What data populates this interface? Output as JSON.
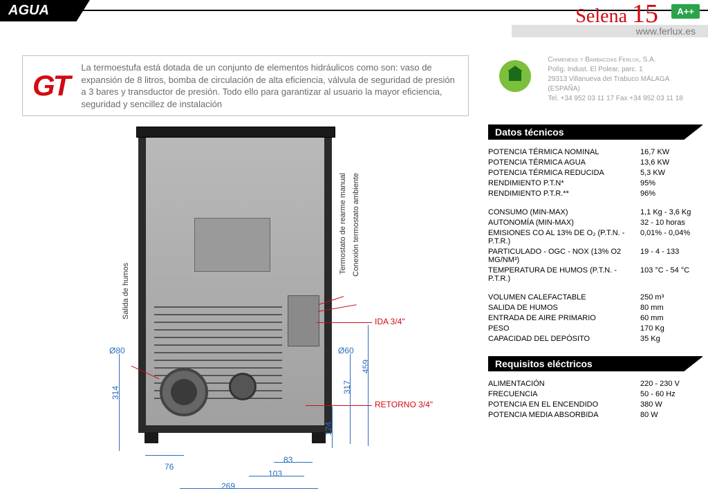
{
  "header": {
    "tag": "AGUA",
    "product": "Selena",
    "product_num": "15",
    "energy": "A++",
    "url": "www.ferlux.es"
  },
  "gt": {
    "logo": "GT",
    "desc": "La termoestufa está dotada de un conjunto de elementos hidráulicos como son: vaso de expansión de 8 litros, bomba de circulación de alta eficiencia, válvula de seguridad de presión a 3 bares y transductor de presión. Todo ello para garantizar al usuario la mayor eficiencia, seguridad y sencillez de instalación"
  },
  "company": {
    "name": "Chimeneas y Barbacoas Ferlux, S.A.",
    "addr1": "Políg. Indust. El Polear, parc. 1",
    "addr2": "29313 Villanueva del Trabuco MÁLAGA (ESPAÑA)",
    "tel": "Tel. +34 952 03 11 17   Fax +34 952 03 11 18"
  },
  "tech": {
    "title": "Datos técnicos",
    "rows": [
      {
        "l": "Potencia térmica nominal",
        "v": "16,7 KW"
      },
      {
        "l": "Potencia térmica agua",
        "v": "13,6 KW"
      },
      {
        "l": "Potencia térmica reducida",
        "v": "5,3 KW"
      },
      {
        "l": "Rendimiento P.T.N*",
        "v": "95%"
      },
      {
        "l": "Rendimiento P.T.R.**",
        "v": "96%"
      },
      {
        "gap": true
      },
      {
        "l": "Consumo (min-max)",
        "v": "1,1 Kg - 3,6 Kg"
      },
      {
        "l": "Autonomía (min-max)",
        "v": "32 - 10 horas"
      },
      {
        "l": "Emisiones CO al 13% de O₂ (P.T.N. - P.T.R.)",
        "v": "0,01% - 0,04%"
      },
      {
        "l": "Particulado - OGC - NOX (13% O2 mg/Nm³)",
        "v": "19 - 4 - 133"
      },
      {
        "l": "Temperatura de humos (P.T.N. - P.T.R.)",
        "v": "103 °C - 54 °C"
      },
      {
        "gap": true
      },
      {
        "l": "Volumen calefactable",
        "v": "250 m³"
      },
      {
        "l": "Salida de humos",
        "v": "80 mm"
      },
      {
        "l": "Entrada de aire primario",
        "v": "60 mm"
      },
      {
        "l": "Peso",
        "v": "170 Kg"
      },
      {
        "l": "Capacidad del depósito",
        "v": "35 Kg"
      }
    ]
  },
  "elec": {
    "title": "Requisitos eléctricos",
    "rows": [
      {
        "l": "Alimentación",
        "v": "220 - 230 V"
      },
      {
        "l": "Frecuencia",
        "v": "50 - 60 Hz"
      },
      {
        "l": "Potencia en el encendido",
        "v": "380 W"
      },
      {
        "l": "Potencia media absorbida",
        "v": "80 W"
      }
    ]
  },
  "diagram": {
    "salida_humos": "Salida de humos",
    "termostato_manual": "Termostato de rearme manual",
    "termostato_ambiente": "Conexión termostato ambiente",
    "ida": "IDA 3/4\"",
    "retorno": "RETORNO 3/4\"",
    "d80": "Ø80",
    "d60": "Ø60",
    "d314": "314",
    "d459": "459",
    "d317": "317",
    "d124": "124",
    "d76": "76",
    "d83": "83",
    "d103": "103",
    "d269": "269"
  },
  "colors": {
    "accent_red": "#d20a11",
    "dim_blue": "#2a6fbf",
    "badge_green": "#2aa34a"
  }
}
